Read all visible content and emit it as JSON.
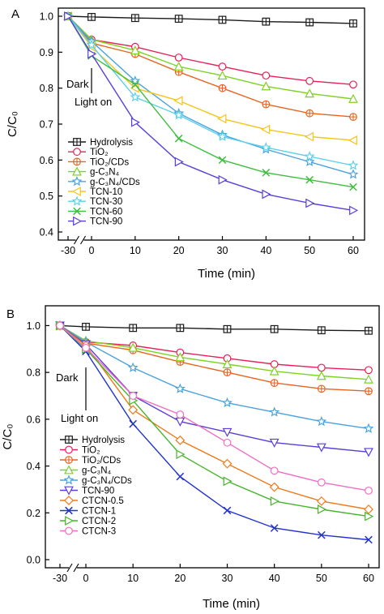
{
  "chart_data": [
    {
      "panel": "A",
      "type": "line",
      "xlabel": "Time (min)",
      "ylabel": "C/C₀",
      "categories": [
        "-30",
        "0",
        "10",
        "20",
        "30",
        "40",
        "50",
        "60"
      ],
      "x": [
        -30,
        0,
        10,
        20,
        30,
        40,
        50,
        60
      ],
      "ylim": [
        0.4,
        1.0
      ],
      "yticks": [
        "0.4",
        "0.5",
        "0.6",
        "0.7",
        "0.8",
        "0.9",
        "1.0"
      ],
      "grid": false,
      "legend_position": "left",
      "annotations": [
        "Dark",
        "Light on"
      ],
      "series": [
        {
          "name": "Hydrolysis",
          "color": "#1a1a1a",
          "marker": "square-plus",
          "values": [
            1.0,
            0.998,
            0.995,
            0.993,
            0.99,
            0.985,
            0.983,
            0.98
          ]
        },
        {
          "name": "TiO₂",
          "color": "#e8205a",
          "marker": "circle",
          "values": [
            1.0,
            0.935,
            0.915,
            0.885,
            0.86,
            0.835,
            0.82,
            0.81
          ]
        },
        {
          "name": "TiO₂/CDs",
          "color": "#e8641e",
          "marker": "circle-plus",
          "values": [
            1.0,
            0.925,
            0.895,
            0.845,
            0.8,
            0.755,
            0.73,
            0.72
          ]
        },
        {
          "name": "g-C₃N₄",
          "color": "#7ed321",
          "marker": "triangle-up",
          "values": [
            1.0,
            0.935,
            0.905,
            0.86,
            0.835,
            0.805,
            0.785,
            0.77
          ]
        },
        {
          "name": "g-C₃N₄/CDs",
          "color": "#4aa3df",
          "marker": "star",
          "values": [
            1.0,
            0.93,
            0.82,
            0.73,
            0.67,
            0.63,
            0.595,
            0.56
          ]
        },
        {
          "name": "TCN-10",
          "color": "#f5c518",
          "marker": "triangle-left",
          "values": [
            1.0,
            0.915,
            0.8,
            0.765,
            0.715,
            0.685,
            0.665,
            0.655
          ]
        },
        {
          "name": "TCN-30",
          "color": "#5ed1e8",
          "marker": "star",
          "values": [
            1.0,
            0.92,
            0.775,
            0.725,
            0.665,
            0.635,
            0.61,
            0.585
          ]
        },
        {
          "name": "TCN-60",
          "color": "#3fbf3f",
          "marker": "x",
          "values": [
            1.0,
            0.89,
            0.81,
            0.66,
            0.6,
            0.565,
            0.545,
            0.525
          ]
        },
        {
          "name": "TCN-90",
          "color": "#5b3ed9",
          "marker": "triangle-right",
          "values": [
            1.0,
            0.895,
            0.705,
            0.595,
            0.545,
            0.505,
            0.48,
            0.46
          ]
        }
      ]
    },
    {
      "panel": "B",
      "type": "line",
      "xlabel": "Time (min)",
      "ylabel": "C/C₀",
      "categories": [
        "-30",
        "0",
        "10",
        "20",
        "30",
        "40",
        "50",
        "60"
      ],
      "x": [
        -30,
        0,
        10,
        20,
        30,
        40,
        50,
        60
      ],
      "ylim": [
        0.0,
        1.05
      ],
      "yticks": [
        "0.0",
        "0.2",
        "0.4",
        "0.6",
        "0.8",
        "1.0"
      ],
      "grid": false,
      "legend_position": "left",
      "annotations": [
        "Dark",
        "Light on"
      ],
      "series": [
        {
          "name": "Hydrolysis",
          "color": "#1a1a1a",
          "marker": "square-plus",
          "values": [
            1.0,
            0.995,
            0.99,
            0.99,
            0.985,
            0.985,
            0.98,
            0.978
          ]
        },
        {
          "name": "TiO₂",
          "color": "#e8205a",
          "marker": "circle",
          "values": [
            1.0,
            0.93,
            0.915,
            0.885,
            0.86,
            0.835,
            0.82,
            0.81
          ]
        },
        {
          "name": "TiO₂/CDs",
          "color": "#e8641e",
          "marker": "circle-plus",
          "values": [
            1.0,
            0.925,
            0.895,
            0.845,
            0.8,
            0.755,
            0.73,
            0.72
          ]
        },
        {
          "name": "g-C₃N₄",
          "color": "#7ed321",
          "marker": "triangle-up",
          "values": [
            1.0,
            0.935,
            0.905,
            0.865,
            0.835,
            0.805,
            0.785,
            0.77
          ]
        },
        {
          "name": "g-C₃N₄/CDs",
          "color": "#4aa3df",
          "marker": "star",
          "values": [
            1.0,
            0.93,
            0.82,
            0.73,
            0.67,
            0.63,
            0.59,
            0.56
          ]
        },
        {
          "name": "TCN-90",
          "color": "#5b3ed9",
          "marker": "triangle-down",
          "values": [
            1.0,
            0.92,
            0.7,
            0.59,
            0.545,
            0.5,
            0.48,
            0.46
          ]
        },
        {
          "name": "CTCN-0.5",
          "color": "#f07a1a",
          "marker": "diamond",
          "values": [
            1.0,
            0.915,
            0.64,
            0.51,
            0.41,
            0.31,
            0.25,
            0.215
          ]
        },
        {
          "name": "CTCN-1",
          "color": "#2233cc",
          "marker": "x",
          "values": [
            1.0,
            0.89,
            0.58,
            0.355,
            0.21,
            0.135,
            0.105,
            0.085
          ]
        },
        {
          "name": "CTCN-2",
          "color": "#45b52a",
          "marker": "triangle-right",
          "values": [
            1.0,
            0.9,
            0.68,
            0.45,
            0.335,
            0.25,
            0.215,
            0.185
          ]
        },
        {
          "name": "CTCN-3",
          "color": "#ee6fc4",
          "marker": "circle",
          "values": [
            1.0,
            0.905,
            0.7,
            0.62,
            0.5,
            0.38,
            0.33,
            0.295
          ]
        }
      ]
    }
  ]
}
